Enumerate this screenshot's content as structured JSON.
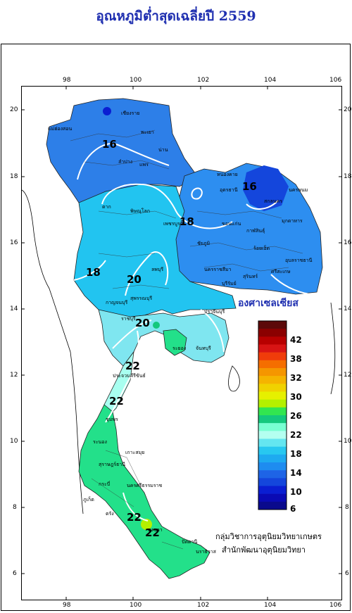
{
  "title": "อุณหภูมิต่ำสุดเฉลี่ยปี 2559",
  "unit": "องศาเซลเซียส",
  "credits": {
    "line1": "กลุ่มวิชาการอุตุนิยมวิทยาเกษตร",
    "line2": "สำนักพัฒนาอุตุนิยมวิทยา"
  },
  "axes": {
    "x_ticks": [
      "98",
      "100",
      "102",
      "104",
      "106"
    ],
    "y_ticks": [
      "20",
      "18",
      "16",
      "14",
      "12",
      "10",
      "8",
      "6"
    ]
  },
  "legend": {
    "labels": [
      "42",
      "38",
      "32",
      "30",
      "26",
      "22",
      "18",
      "14",
      "10",
      "6"
    ],
    "colors": [
      "#5c0a0a",
      "#8b0000",
      "#b80000",
      "#d81414",
      "#f03c0a",
      "#f56e00",
      "#f59600",
      "#f5b400",
      "#f0d200",
      "#e6f000",
      "#b4f000",
      "#32e650",
      "#14c87d",
      "#78ffd2",
      "#b4fff0",
      "#64e6f0",
      "#28c8f0",
      "#1eaaf0",
      "#1e8cf0",
      "#1e64e6",
      "#1446dc",
      "#0a1ed2",
      "#0a0ab4",
      "#0a0a8c"
    ]
  },
  "isotherm_labels": [
    "16",
    "18",
    "16",
    "18",
    "20",
    "20",
    "22",
    "22",
    "22",
    "22"
  ],
  "places": [
    "แม่ฮ่องสอน",
    "เชียงราย",
    "พะเยา",
    "ลำปาง",
    "แพร่",
    "น่าน",
    "ตาก",
    "หนองคาย",
    "อุดรธานี",
    "สกลนคร",
    "นครพนม",
    "มุกดาหาร",
    "พิษณุโลก",
    "เพชรบูรณ์",
    "ชัยภูมิ",
    "ขอนแก่น",
    "กาฬสินธุ์",
    "ร้อยเอ็ด",
    "นครราชสีมา",
    "บุรีรัมย์",
    "สุรินทร์",
    "อุบลราชธานี",
    "ศรีสะเกษ",
    "กาญจนบุรี",
    "สุพรรณบุรี",
    "ลพบุรี",
    "ปราจีนบุรี",
    "ราชบุรี",
    "ระยอง",
    "จันทบุรี",
    "ประจวบคีรีขันธ์",
    "ชุมพร",
    "ระนอง",
    "สุราษฎร์ธานี",
    "กระบี่",
    "ภูเก็ต",
    "นครศรีธรรมราช",
    "ตรัง",
    "สงขลา",
    "ปัตตานี",
    "นราธิวาส",
    "เกาะสมุย"
  ]
}
